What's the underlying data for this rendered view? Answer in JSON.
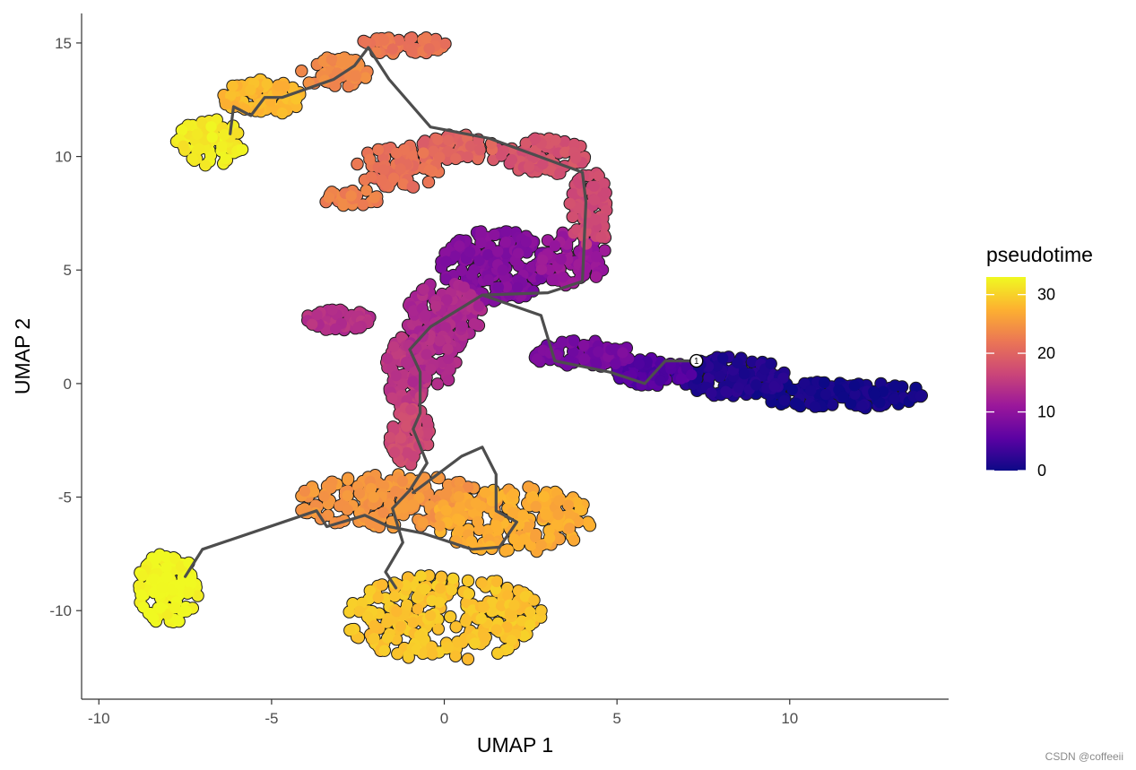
{
  "chart_data": {
    "type": "scatter",
    "xlabel": "UMAP 1",
    "ylabel": "UMAP 2",
    "xlim": [
      -10.5,
      14.6
    ],
    "ylim": [
      -13.9,
      16.3
    ],
    "x_ticks": [
      -10,
      -5,
      0,
      5,
      10
    ],
    "x_tick_labels": [
      "-10",
      "-5",
      "0",
      "5",
      "10"
    ],
    "y_ticks": [
      15,
      10,
      5,
      0,
      -5,
      -10
    ],
    "y_tick_labels": [
      "15",
      "10",
      "5",
      "0",
      "-5",
      "-10"
    ],
    "grid": false,
    "color_scale": {
      "title": "pseudotime",
      "palette": "plasma",
      "range": [
        0,
        33
      ],
      "ticks": [
        0,
        10,
        20,
        30
      ],
      "tick_labels": [
        "0",
        "10",
        "20",
        "30"
      ],
      "stops": [
        "#0d0887",
        "#5b02a3",
        "#9a179b",
        "#cb4678",
        "#eb7655",
        "#fdb130",
        "#f0f921"
      ],
      "legend_position": "right"
    },
    "clusters": [
      {
        "x": 11.5,
        "y": -0.5,
        "rx": 2.6,
        "ry": 0.6,
        "n": 130,
        "t": 0.5
      },
      {
        "x": 8.3,
        "y": 0.3,
        "rx": 1.6,
        "ry": 0.9,
        "n": 110,
        "t": 1.5
      },
      {
        "x": 6.0,
        "y": 0.5,
        "rx": 1.2,
        "ry": 0.6,
        "n": 70,
        "t": 5
      },
      {
        "x": 4.0,
        "y": 1.3,
        "rx": 1.5,
        "ry": 0.6,
        "n": 80,
        "t": 8
      },
      {
        "x": 1.5,
        "y": 5.2,
        "rx": 1.6,
        "ry": 1.6,
        "n": 170,
        "t": 9
      },
      {
        "x": 3.7,
        "y": 5.5,
        "rx": 1.0,
        "ry": 1.2,
        "n": 70,
        "t": 11
      },
      {
        "x": 0.0,
        "y": 3.0,
        "rx": 1.1,
        "ry": 1.5,
        "n": 140,
        "t": 13
      },
      {
        "x": -3.1,
        "y": 2.8,
        "rx": 1.0,
        "ry": 0.45,
        "n": 55,
        "t": 14
      },
      {
        "x": -1.1,
        "y": 0.5,
        "rx": 0.6,
        "ry": 1.6,
        "n": 90,
        "t": 15
      },
      {
        "x": -0.4,
        "y": 1.0,
        "rx": 0.8,
        "ry": 1.2,
        "n": 60,
        "t": 13.5
      },
      {
        "x": -1.0,
        "y": -2.3,
        "rx": 0.6,
        "ry": 1.3,
        "n": 80,
        "t": 17
      },
      {
        "x": 4.2,
        "y": 7.6,
        "rx": 0.6,
        "ry": 1.8,
        "n": 70,
        "t": 17
      },
      {
        "x": 2.8,
        "y": 10.0,
        "rx": 1.4,
        "ry": 0.8,
        "n": 80,
        "t": 18
      },
      {
        "x": 0.4,
        "y": 10.4,
        "rx": 1.1,
        "ry": 0.6,
        "n": 60,
        "t": 20
      },
      {
        "x": -1.3,
        "y": 9.6,
        "rx": 1.3,
        "ry": 1.0,
        "n": 70,
        "t": 21.5
      },
      {
        "x": -2.7,
        "y": 8.2,
        "rx": 0.9,
        "ry": 0.4,
        "n": 30,
        "t": 23
      },
      {
        "x": -1.4,
        "y": -5.2,
        "rx": 3.0,
        "ry": 1.2,
        "n": 200,
        "t": 25
      },
      {
        "x": 2.0,
        "y": -6.0,
        "rx": 2.3,
        "ry": 1.5,
        "n": 170,
        "t": 27
      },
      {
        "x": 0.0,
        "y": -10.3,
        "rx": 2.9,
        "ry": 1.9,
        "n": 240,
        "t": 29
      },
      {
        "x": -3.2,
        "y": 13.7,
        "rx": 1.0,
        "ry": 0.7,
        "n": 60,
        "t": 24
      },
      {
        "x": -1.2,
        "y": 14.9,
        "rx": 1.3,
        "ry": 0.4,
        "n": 50,
        "t": 22
      },
      {
        "x": -5.3,
        "y": 12.6,
        "rx": 1.2,
        "ry": 0.8,
        "n": 70,
        "t": 28
      },
      {
        "x": -6.8,
        "y": 10.6,
        "rx": 1.0,
        "ry": 1.1,
        "n": 80,
        "t": 32
      },
      {
        "x": -8.0,
        "y": -9.0,
        "rx": 0.9,
        "ry": 1.6,
        "n": 120,
        "t": 33
      }
    ],
    "trajectory": [
      [
        [
          7.3,
          1.0
        ],
        [
          6.4,
          1.0
        ],
        [
          5.8,
          0.0
        ],
        [
          4.8,
          0.5
        ],
        [
          3.2,
          1.0
        ],
        [
          2.8,
          3.0
        ],
        [
          1.1,
          3.9
        ],
        [
          -0.4,
          2.5
        ],
        [
          -1.0,
          1.5
        ],
        [
          -0.7,
          0.5
        ],
        [
          -0.7,
          -1.3
        ],
        [
          -0.9,
          -2.0
        ],
        [
          -0.5,
          -3.5
        ],
        [
          -1.0,
          -4.7
        ],
        [
          -1.5,
          -5.5
        ],
        [
          -1.2,
          -7.0
        ],
        [
          -1.7,
          -8.3
        ],
        [
          -1.4,
          -9.0
        ]
      ],
      [
        [
          1.1,
          3.9
        ],
        [
          3.0,
          4.0
        ],
        [
          4.0,
          4.5
        ],
        [
          4.1,
          8.0
        ],
        [
          4.0,
          9.3
        ],
        [
          1.3,
          10.8
        ],
        [
          -0.4,
          11.3
        ],
        [
          -1.6,
          13.4
        ],
        [
          -2.2,
          14.8
        ],
        [
          -2.6,
          14.0
        ],
        [
          -3.2,
          13.4
        ],
        [
          -4.7,
          12.6
        ],
        [
          -5.2,
          12.6
        ],
        [
          -5.6,
          11.8
        ],
        [
          -6.1,
          12.2
        ],
        [
          -6.2,
          11.0
        ]
      ],
      [
        [
          -0.9,
          -4.8
        ],
        [
          0.5,
          -3.2
        ],
        [
          1.1,
          -2.8
        ],
        [
          1.5,
          -4.0
        ],
        [
          1.5,
          -5.6
        ],
        [
          2.1,
          -6.1
        ],
        [
          1.6,
          -7.2
        ],
        [
          0.8,
          -7.3
        ],
        [
          -0.6,
          -6.6
        ],
        [
          -1.6,
          -6.3
        ],
        [
          -2.3,
          -5.8
        ],
        [
          -3.4,
          -6.3
        ],
        [
          -3.7,
          -5.6
        ],
        [
          -7.0,
          -7.3
        ],
        [
          -7.5,
          -8.5
        ]
      ]
    ],
    "root_node_label": "1",
    "root_node": [
      7.3,
      1.0
    ]
  },
  "watermark": "CSDN @coffeeii"
}
